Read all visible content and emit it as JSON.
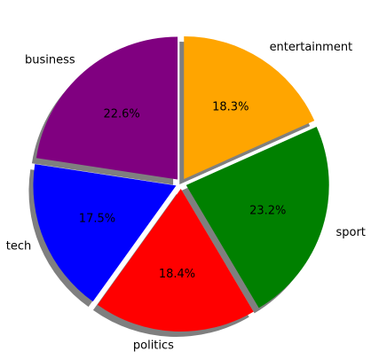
{
  "chart_data": {
    "type": "pie",
    "categories": [
      "entertainment",
      "sport",
      "politics",
      "tech",
      "business"
    ],
    "values": [
      18.3,
      23.2,
      18.4,
      17.5,
      22.6
    ],
    "value_labels": [
      "18.3%",
      "23.2%",
      "18.4%",
      "17.5%",
      "22.6%"
    ],
    "colors": [
      "#ffa500",
      "#008000",
      "#ff0000",
      "#0000ff",
      "#800080"
    ],
    "exploded": true,
    "shadow": true,
    "title": "",
    "legend": "none"
  }
}
